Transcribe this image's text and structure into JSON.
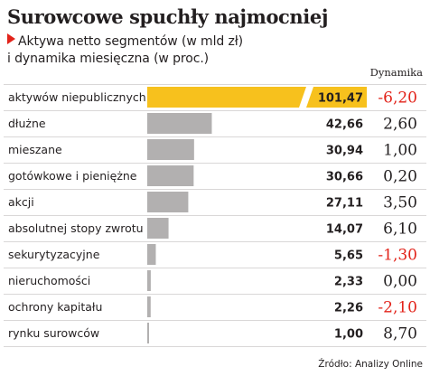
{
  "chart_data": {
    "type": "bar",
    "title": "Surowcowe spuchły najmocniej",
    "subtitle_line1": "Aktywa netto segmentów (w mld zł)",
    "subtitle_line2": "i dynamika miesięczna (w proc.)",
    "dynamics_header": "Dynamika",
    "source": "Źródło: Analizy Online",
    "categories": [
      "aktywów niepublicznych",
      "dłużne",
      "mieszane",
      "gotówkowe i pieniężne",
      "akcji",
      "absolutnej stopy zwrotu",
      "sekurytyzacyjne",
      "nieruchomości",
      "ochrony kapitału",
      "rynku surowców"
    ],
    "values": [
      101.47,
      42.66,
      30.94,
      30.66,
      27.11,
      14.07,
      5.65,
      2.33,
      2.26,
      1.0
    ],
    "value_labels": [
      "101,47",
      "42,66",
      "30,94",
      "30,66",
      "27,11",
      "14,07",
      "5,65",
      "2,33",
      "2,26",
      "1,00"
    ],
    "dynamics": [
      -6.2,
      2.6,
      1.0,
      0.2,
      3.5,
      6.1,
      -1.3,
      0.0,
      -2.1,
      8.7
    ],
    "dynamics_labels": [
      "-6,20",
      "2,60",
      "1,00",
      "0,20",
      "3,50",
      "6,10",
      "-1,30",
      "0,00",
      "-2,10",
      "8,70"
    ],
    "highlight_index": 0,
    "colors": {
      "bar": "#b2b0b0",
      "highlight": "#f7c11d",
      "positive": "#231f20",
      "negative": "#e2231a",
      "subtitle_marker": "#e2231a"
    }
  }
}
